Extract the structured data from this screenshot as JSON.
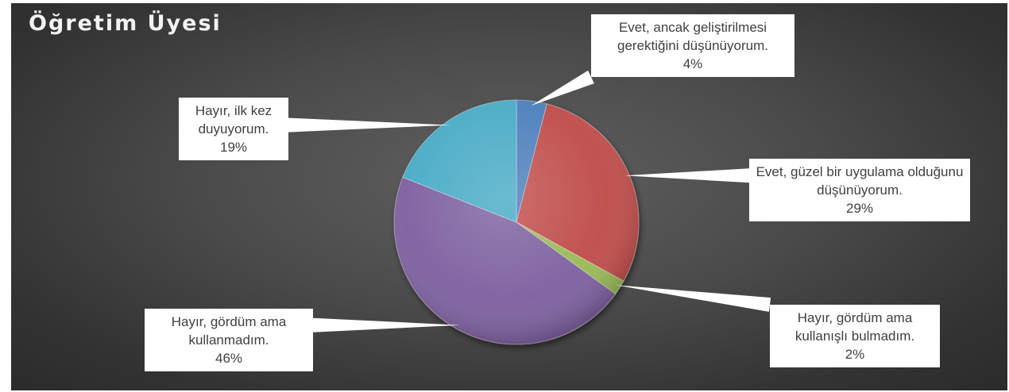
{
  "chart_data": {
    "type": "pie",
    "title": "Öğretim Üyesi",
    "slices": [
      {
        "label": "Evet, ancak geliştirilmesi gerektiğini düşünüyorum.",
        "value": 4,
        "value_label": "4%",
        "color": "#4f81bd"
      },
      {
        "label": "Evet, güzel bir uygulama olduğunu düşünüyorum.",
        "value": 29,
        "value_label": "29%",
        "color": "#c0504d"
      },
      {
        "label": "Hayır, gördüm ama kullanışlı bulmadım.",
        "value": 2,
        "value_label": "2%",
        "color": "#9bbb59"
      },
      {
        "label": "Hayır, gördüm ama kullanmadım.",
        "value": 46,
        "value_label": "46%",
        "color": "#8064a2"
      },
      {
        "label": "Hayır, ilk kez duyuyorum.",
        "value": 19,
        "value_label": "19%",
        "color": "#4bacc6"
      }
    ]
  }
}
